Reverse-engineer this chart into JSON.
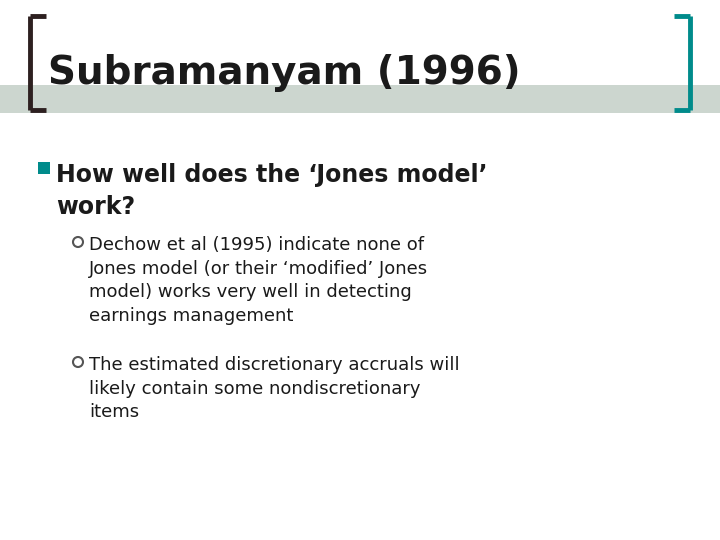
{
  "title": "Subramanyam (1996)",
  "title_fontsize": 28,
  "title_color": "#1a1a1a",
  "background_color": "#ffffff",
  "bracket_color_left": "#2d2020",
  "bracket_color_right": "#008b8b",
  "header_band_color": "#9aafa0",
  "bullet1_text": "How well does the ‘Jones model’\nwork?",
  "bullet1_fontsize": 17,
  "bullet1_color": "#1a1a1a",
  "bullet1_marker_color": "#008b8b",
  "sub_bullet1_text": "Dechow et al (1995) indicate none of\nJones model (or their ‘modified’ Jones\nmodel) works very well in detecting\nearnings management",
  "sub_bullet2_text": "The estimated discretionary accruals will\nlikely contain some nondiscretionary\nitems",
  "sub_bullet_fontsize": 13,
  "sub_bullet_color": "#1a1a1a",
  "sub_bullet_marker_color": "#555555"
}
